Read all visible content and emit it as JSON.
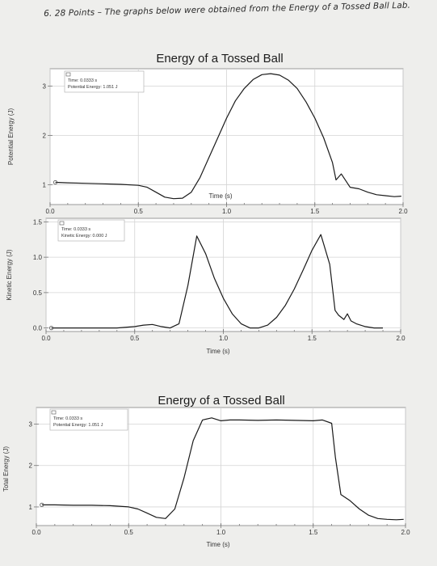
{
  "question": "6. 28 Points – The graphs below were obtained from the Energy of a Tossed Ball Lab.",
  "chart_data": [
    {
      "type": "line",
      "title": "Energy of a Tossed Ball",
      "xlabel": "Time (s)",
      "ylabel": "Potential Energy (J)",
      "xlim": [
        0,
        2.0
      ],
      "ylim": [
        0.6,
        3.35
      ],
      "xticks": [
        "0.0",
        "0.5",
        "1.0",
        "1.5",
        "2.0"
      ],
      "yticks": [
        "1",
        "2",
        "3"
      ],
      "xtick_values": [
        0,
        0.5,
        1.0,
        1.5,
        2.0
      ],
      "ytick_values": [
        1,
        2,
        3
      ],
      "grid": true,
      "info_lines": [
        "Time: 0.0333 s",
        "Potential Energy: 1.051 J"
      ],
      "series": [
        {
          "x": [
            0.03,
            0.1,
            0.2,
            0.3,
            0.4,
            0.5,
            0.55,
            0.6,
            0.65,
            0.7,
            0.75,
            0.8,
            0.85,
            0.9,
            0.95,
            1.0,
            1.05,
            1.1,
            1.15,
            1.2,
            1.25,
            1.3,
            1.35,
            1.4,
            1.45,
            1.5,
            1.55,
            1.6,
            1.62,
            1.65,
            1.7,
            1.75,
            1.8,
            1.85,
            1.9,
            1.95,
            1.99
          ],
          "y": [
            1.05,
            1.04,
            1.03,
            1.02,
            1.01,
            0.99,
            0.95,
            0.85,
            0.75,
            0.72,
            0.73,
            0.85,
            1.15,
            1.55,
            1.95,
            2.35,
            2.7,
            2.95,
            3.13,
            3.23,
            3.25,
            3.22,
            3.12,
            2.95,
            2.68,
            2.35,
            1.95,
            1.45,
            1.1,
            1.22,
            0.95,
            0.92,
            0.85,
            0.8,
            0.78,
            0.76,
            0.77
          ]
        }
      ]
    },
    {
      "type": "line",
      "title": "",
      "xlabel": "Time (s)",
      "ylabel": "Kinetic Energy (J)",
      "xlim": [
        0,
        2.0
      ],
      "ylim": [
        -0.05,
        1.55
      ],
      "xticks": [
        "0.0",
        "0.5",
        "1.0",
        "1.5",
        "2.0"
      ],
      "yticks": [
        "0.0",
        "0.5",
        "1.0",
        "1.5"
      ],
      "xtick_values": [
        0,
        0.5,
        1.0,
        1.5,
        2.0
      ],
      "ytick_values": [
        0,
        0.5,
        1.0,
        1.5
      ],
      "grid": true,
      "info_lines": [
        "Time: 0.0333 s",
        "Kinetic Energy: 0.000 J"
      ],
      "series": [
        {
          "x": [
            0.03,
            0.2,
            0.4,
            0.5,
            0.55,
            0.6,
            0.65,
            0.7,
            0.75,
            0.8,
            0.85,
            0.9,
            0.95,
            1.0,
            1.05,
            1.1,
            1.15,
            1.2,
            1.25,
            1.3,
            1.35,
            1.4,
            1.45,
            1.5,
            1.55,
            1.6,
            1.63,
            1.65,
            1.68,
            1.7,
            1.72,
            1.75,
            1.8,
            1.85,
            1.9
          ],
          "y": [
            0.0,
            0.0,
            0.0,
            0.02,
            0.04,
            0.05,
            0.02,
            0.0,
            0.06,
            0.6,
            1.3,
            1.05,
            0.7,
            0.42,
            0.2,
            0.06,
            0.0,
            0.0,
            0.04,
            0.15,
            0.32,
            0.55,
            0.82,
            1.1,
            1.32,
            0.9,
            0.25,
            0.18,
            0.12,
            0.2,
            0.1,
            0.06,
            0.02,
            0.0,
            0.0
          ]
        }
      ]
    },
    {
      "type": "line",
      "title": "Energy of a Tossed Ball",
      "xlabel": "Time (s)",
      "ylabel": "Total Energy (J)",
      "xlim": [
        0,
        2.0
      ],
      "ylim": [
        0.55,
        3.4
      ],
      "xticks": [
        "0.0",
        "0.5",
        "1.0",
        "1.5",
        "2.0"
      ],
      "yticks": [
        "1",
        "2",
        "3"
      ],
      "xtick_values": [
        0,
        0.5,
        1.0,
        1.5,
        2.0
      ],
      "ytick_values": [
        1,
        2,
        3
      ],
      "grid": true,
      "info_lines": [
        "Time: 0.0333 s",
        "Potential Energy: 1.051 J"
      ],
      "series": [
        {
          "x": [
            0.03,
            0.1,
            0.2,
            0.3,
            0.4,
            0.5,
            0.55,
            0.6,
            0.65,
            0.7,
            0.75,
            0.8,
            0.85,
            0.9,
            0.95,
            1.0,
            1.05,
            1.1,
            1.2,
            1.3,
            1.4,
            1.5,
            1.55,
            1.6,
            1.62,
            1.65,
            1.7,
            1.75,
            1.8,
            1.85,
            1.9,
            1.95,
            1.99
          ],
          "y": [
            1.05,
            1.05,
            1.04,
            1.04,
            1.03,
            1.0,
            0.95,
            0.85,
            0.75,
            0.72,
            0.95,
            1.7,
            2.6,
            3.1,
            3.15,
            3.08,
            3.1,
            3.1,
            3.09,
            3.1,
            3.09,
            3.08,
            3.1,
            3.02,
            2.2,
            1.3,
            1.15,
            0.95,
            0.8,
            0.72,
            0.7,
            0.69,
            0.7
          ]
        }
      ]
    }
  ]
}
